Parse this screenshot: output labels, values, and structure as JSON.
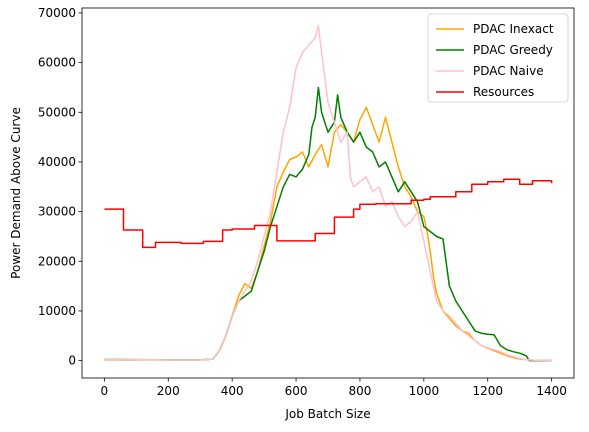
{
  "chart_data": {
    "type": "line",
    "title": "",
    "xlabel": "Job Batch Size",
    "ylabel": "Power Demand Above Curve",
    "xlim": [
      -70,
      1470
    ],
    "ylim": [
      -3500,
      71000
    ],
    "xticks": [
      0,
      200,
      400,
      600,
      800,
      1000,
      1200,
      1400
    ],
    "yticks": [
      0,
      10000,
      20000,
      30000,
      40000,
      50000,
      60000,
      70000
    ],
    "legend_position": "top-right",
    "grid": false,
    "series": [
      {
        "name": "PDAC Inexact",
        "color": "#ffa500",
        "step": false,
        "points": [
          [
            0,
            200
          ],
          [
            100,
            150
          ],
          [
            200,
            150
          ],
          [
            300,
            150
          ],
          [
            340,
            300
          ],
          [
            360,
            2000
          ],
          [
            380,
            5000
          ],
          [
            400,
            9000
          ],
          [
            420,
            13000
          ],
          [
            440,
            15500
          ],
          [
            460,
            14500
          ],
          [
            480,
            18000
          ],
          [
            500,
            23000
          ],
          [
            520,
            28000
          ],
          [
            540,
            35000
          ],
          [
            560,
            38000
          ],
          [
            580,
            40500
          ],
          [
            600,
            41000
          ],
          [
            620,
            42000
          ],
          [
            640,
            39000
          ],
          [
            660,
            41500
          ],
          [
            680,
            43500
          ],
          [
            700,
            39000
          ],
          [
            720,
            46000
          ],
          [
            740,
            47500
          ],
          [
            760,
            46000
          ],
          [
            780,
            44000
          ],
          [
            800,
            48500
          ],
          [
            820,
            51000
          ],
          [
            840,
            47500
          ],
          [
            860,
            44000
          ],
          [
            880,
            49000
          ],
          [
            900,
            44000
          ],
          [
            920,
            39000
          ],
          [
            940,
            35000
          ],
          [
            960,
            33000
          ],
          [
            980,
            30000
          ],
          [
            1000,
            29000
          ],
          [
            1010,
            26000
          ],
          [
            1020,
            22000
          ],
          [
            1030,
            17000
          ],
          [
            1040,
            13500
          ],
          [
            1060,
            10000
          ],
          [
            1080,
            8500
          ],
          [
            1100,
            7000
          ],
          [
            1120,
            6000
          ],
          [
            1140,
            5500
          ],
          [
            1160,
            4000
          ],
          [
            1180,
            3000
          ],
          [
            1200,
            2500
          ],
          [
            1220,
            2000
          ],
          [
            1240,
            1500
          ],
          [
            1260,
            1000
          ],
          [
            1280,
            600
          ],
          [
            1300,
            300
          ],
          [
            1320,
            200
          ],
          [
            1340,
            100
          ],
          [
            1400,
            0
          ]
        ]
      },
      {
        "name": "PDAC Greedy",
        "color": "#008000",
        "step": false,
        "points": [
          [
            0,
            250
          ],
          [
            100,
            200
          ],
          [
            200,
            150
          ],
          [
            300,
            150
          ],
          [
            340,
            300
          ],
          [
            360,
            2000
          ],
          [
            380,
            5000
          ],
          [
            400,
            9000
          ],
          [
            420,
            12000
          ],
          [
            440,
            13000
          ],
          [
            460,
            14000
          ],
          [
            480,
            18000
          ],
          [
            500,
            22000
          ],
          [
            520,
            27000
          ],
          [
            540,
            31000
          ],
          [
            560,
            35000
          ],
          [
            580,
            37500
          ],
          [
            600,
            37000
          ],
          [
            620,
            38500
          ],
          [
            640,
            41500
          ],
          [
            650,
            47000
          ],
          [
            660,
            49000
          ],
          [
            670,
            55000
          ],
          [
            680,
            50000
          ],
          [
            700,
            46000
          ],
          [
            720,
            48000
          ],
          [
            730,
            53500
          ],
          [
            740,
            49000
          ],
          [
            760,
            46000
          ],
          [
            780,
            44000
          ],
          [
            800,
            46000
          ],
          [
            820,
            43000
          ],
          [
            840,
            42000
          ],
          [
            860,
            39000
          ],
          [
            880,
            40000
          ],
          [
            900,
            37000
          ],
          [
            920,
            34000
          ],
          [
            940,
            36000
          ],
          [
            960,
            34000
          ],
          [
            980,
            32000
          ],
          [
            1000,
            27000
          ],
          [
            1020,
            26000
          ],
          [
            1040,
            25000
          ],
          [
            1060,
            24500
          ],
          [
            1080,
            15000
          ],
          [
            1100,
            12000
          ],
          [
            1120,
            10000
          ],
          [
            1140,
            8000
          ],
          [
            1160,
            6000
          ],
          [
            1180,
            5500
          ],
          [
            1200,
            5300
          ],
          [
            1220,
            5200
          ],
          [
            1240,
            3000
          ],
          [
            1260,
            2200
          ],
          [
            1280,
            1800
          ],
          [
            1300,
            1500
          ],
          [
            1320,
            1000
          ],
          [
            1330,
            0
          ],
          [
            1400,
            0
          ]
        ]
      },
      {
        "name": "PDAC Naive",
        "color": "#ffc0cb",
        "step": false,
        "points": [
          [
            0,
            250
          ],
          [
            100,
            200
          ],
          [
            200,
            150
          ],
          [
            300,
            150
          ],
          [
            340,
            300
          ],
          [
            360,
            2000
          ],
          [
            380,
            5000
          ],
          [
            400,
            9000
          ],
          [
            420,
            12000
          ],
          [
            440,
            14000
          ],
          [
            460,
            16000
          ],
          [
            480,
            20000
          ],
          [
            500,
            25000
          ],
          [
            520,
            30000
          ],
          [
            540,
            38000
          ],
          [
            560,
            46000
          ],
          [
            580,
            51000
          ],
          [
            600,
            59000
          ],
          [
            620,
            62000
          ],
          [
            640,
            63500
          ],
          [
            660,
            65000
          ],
          [
            670,
            67500
          ],
          [
            680,
            62000
          ],
          [
            700,
            52000
          ],
          [
            720,
            48000
          ],
          [
            740,
            44000
          ],
          [
            760,
            46000
          ],
          [
            770,
            37000
          ],
          [
            780,
            35000
          ],
          [
            800,
            36000
          ],
          [
            820,
            37000
          ],
          [
            840,
            34000
          ],
          [
            860,
            35000
          ],
          [
            880,
            31000
          ],
          [
            900,
            32000
          ],
          [
            920,
            29000
          ],
          [
            940,
            27000
          ],
          [
            960,
            28000
          ],
          [
            980,
            30000
          ],
          [
            1000,
            24000
          ],
          [
            1020,
            18000
          ],
          [
            1040,
            12000
          ],
          [
            1060,
            10000
          ],
          [
            1080,
            9000
          ],
          [
            1100,
            7500
          ],
          [
            1120,
            6000
          ],
          [
            1140,
            5000
          ],
          [
            1160,
            4000
          ],
          [
            1180,
            3000
          ],
          [
            1200,
            2600
          ],
          [
            1220,
            2200
          ],
          [
            1240,
            1800
          ],
          [
            1260,
            1200
          ],
          [
            1280,
            800
          ],
          [
            1300,
            400
          ],
          [
            1320,
            200
          ],
          [
            1340,
            100
          ],
          [
            1400,
            0
          ]
        ]
      },
      {
        "name": "Resources",
        "color": "#ff0000",
        "step": true,
        "points": [
          [
            0,
            30500
          ],
          [
            60,
            26300
          ],
          [
            120,
            22800
          ],
          [
            160,
            23800
          ],
          [
            240,
            23600
          ],
          [
            310,
            24000
          ],
          [
            370,
            26300
          ],
          [
            400,
            26500
          ],
          [
            470,
            27200
          ],
          [
            540,
            24100
          ],
          [
            660,
            25600
          ],
          [
            720,
            28900
          ],
          [
            780,
            30500
          ],
          [
            800,
            31500
          ],
          [
            850,
            31600
          ],
          [
            960,
            32300
          ],
          [
            1000,
            32500
          ],
          [
            1020,
            33000
          ],
          [
            1100,
            34000
          ],
          [
            1150,
            35500
          ],
          [
            1200,
            36000
          ],
          [
            1250,
            36500
          ],
          [
            1300,
            35500
          ],
          [
            1340,
            36200
          ],
          [
            1400,
            35700
          ]
        ]
      }
    ]
  }
}
